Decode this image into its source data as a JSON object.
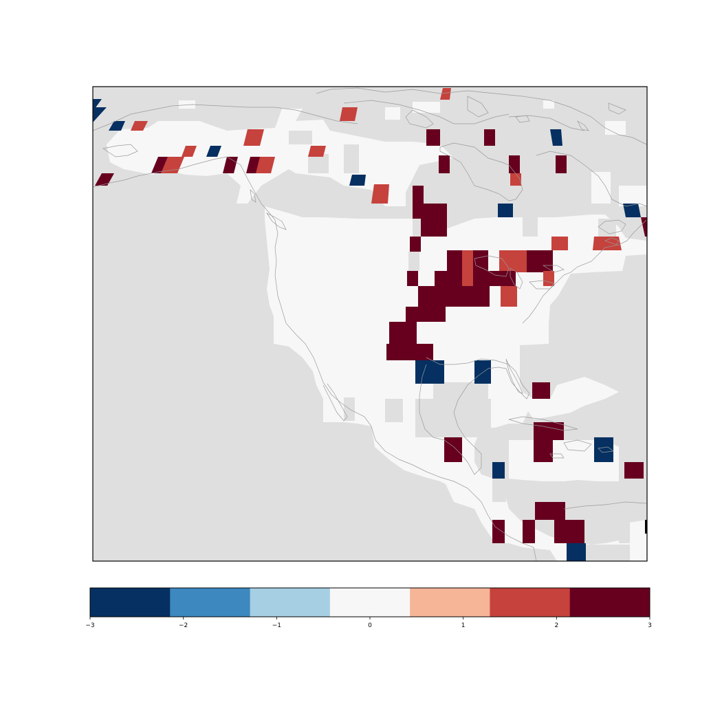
{
  "map": {
    "projection": "lambert-conformal",
    "region": "North America",
    "background_color": "#dfdfdf",
    "land_zero_color": "#f7f7f7",
    "coastline_color": "#999999",
    "cells": [
      {
        "value": -3,
        "name": "cell-alaska-w1"
      },
      {
        "value": -3,
        "name": "cell-alaska-w2"
      },
      {
        "value": 2,
        "name": "cell-alaska-1"
      },
      {
        "value": -3,
        "name": "cell-alaska-2"
      },
      {
        "value": 3,
        "name": "cell-alaska-sw"
      },
      {
        "value": 3,
        "name": "cell-alaska-s1"
      },
      {
        "value": 2,
        "name": "cell-alaska-s2"
      },
      {
        "value": 2,
        "name": "cell-yukon-1"
      },
      {
        "value": -3,
        "name": "cell-yukon-2"
      },
      {
        "value": 3,
        "name": "cell-bc-n1"
      },
      {
        "value": 3,
        "name": "cell-bc-n2"
      },
      {
        "value": 2,
        "name": "cell-bc-n3"
      },
      {
        "value": 2,
        "name": "cell-nwt-1"
      },
      {
        "value": 2,
        "name": "cell-nwt-2"
      },
      {
        "value": 2,
        "name": "cell-arctic-1"
      },
      {
        "value": 2,
        "name": "cell-arctic-2"
      },
      {
        "value": -3,
        "name": "cell-nwt-3"
      },
      {
        "value": 2,
        "name": "cell-sask-1"
      },
      {
        "value": 3,
        "name": "cell-nunavut-1"
      },
      {
        "value": 3,
        "name": "cell-nunavut-2"
      },
      {
        "value": -3,
        "name": "cell-baffin-1"
      },
      {
        "value": 3,
        "name": "cell-hudson-1"
      },
      {
        "value": 3,
        "name": "cell-hudson-2"
      },
      {
        "value": 3,
        "name": "cell-hudson-3"
      },
      {
        "value": 2,
        "name": "cell-hudson-4"
      },
      {
        "value": 3,
        "name": "cell-manitoba-1"
      },
      {
        "value": 3,
        "name": "cell-manitoba-2"
      },
      {
        "value": -3,
        "name": "cell-ontario-1"
      },
      {
        "value": -3,
        "name": "cell-labrador-1"
      },
      {
        "value": 3,
        "name": "cell-labrador-2"
      },
      {
        "value": 3,
        "name": "cell-plains-1"
      },
      {
        "value": 2,
        "name": "cell-maritimes-1"
      },
      {
        "value": 2,
        "name": "cell-maritimes-2"
      },
      {
        "value": 3,
        "name": "cell-midwest-1"
      },
      {
        "value": 2,
        "name": "cell-midwest-2"
      },
      {
        "value": 3,
        "name": "cell-midwest-3"
      },
      {
        "value": 2,
        "name": "cell-greatlakes-1"
      },
      {
        "value": 3,
        "name": "cell-greatlakes-2"
      },
      {
        "value": 3,
        "name": "cell-plains-2"
      },
      {
        "value": 3,
        "name": "cell-central-1"
      },
      {
        "value": 3,
        "name": "cell-central-2"
      },
      {
        "value": 2,
        "name": "cell-central-3"
      },
      {
        "value": 2,
        "name": "cell-east-1"
      },
      {
        "value": 3,
        "name": "cell-south-1"
      },
      {
        "value": 3,
        "name": "cell-south-2"
      },
      {
        "value": 3,
        "name": "cell-south-3"
      },
      {
        "value": 3,
        "name": "cell-south-4"
      },
      {
        "value": -3,
        "name": "cell-gulf-1"
      },
      {
        "value": -3,
        "name": "cell-florida-1"
      },
      {
        "value": 3,
        "name": "cell-caribbean-1"
      },
      {
        "value": 3,
        "name": "cell-caribbean-2"
      },
      {
        "value": 3,
        "name": "cell-yucatan-1"
      },
      {
        "value": 3,
        "name": "cell-caribbean-3"
      },
      {
        "value": -3,
        "name": "cell-central-am-1"
      },
      {
        "value": -3,
        "name": "cell-caribbean-4"
      },
      {
        "value": 3,
        "name": "cell-panama-1"
      },
      {
        "value": 3,
        "name": "cell-panama-2"
      },
      {
        "value": 3,
        "name": "cell-panama-3"
      },
      {
        "value": 3,
        "name": "cell-colombia-1"
      },
      {
        "value": 3,
        "name": "cell-colombia-2"
      },
      {
        "value": -3,
        "name": "cell-edge-1"
      }
    ]
  },
  "colorbar": {
    "min": -3,
    "max": 3,
    "colors": [
      "#053061",
      "#3c88bf",
      "#a7cfe4",
      "#f7f7f7",
      "#f6b597",
      "#c6423d",
      "#67001f"
    ],
    "tick_values": [
      -3,
      -2,
      -1,
      0,
      1,
      2,
      3
    ],
    "tick_labels": [
      "−3",
      "−2",
      "−1",
      "0",
      "1",
      "2",
      "3"
    ]
  }
}
